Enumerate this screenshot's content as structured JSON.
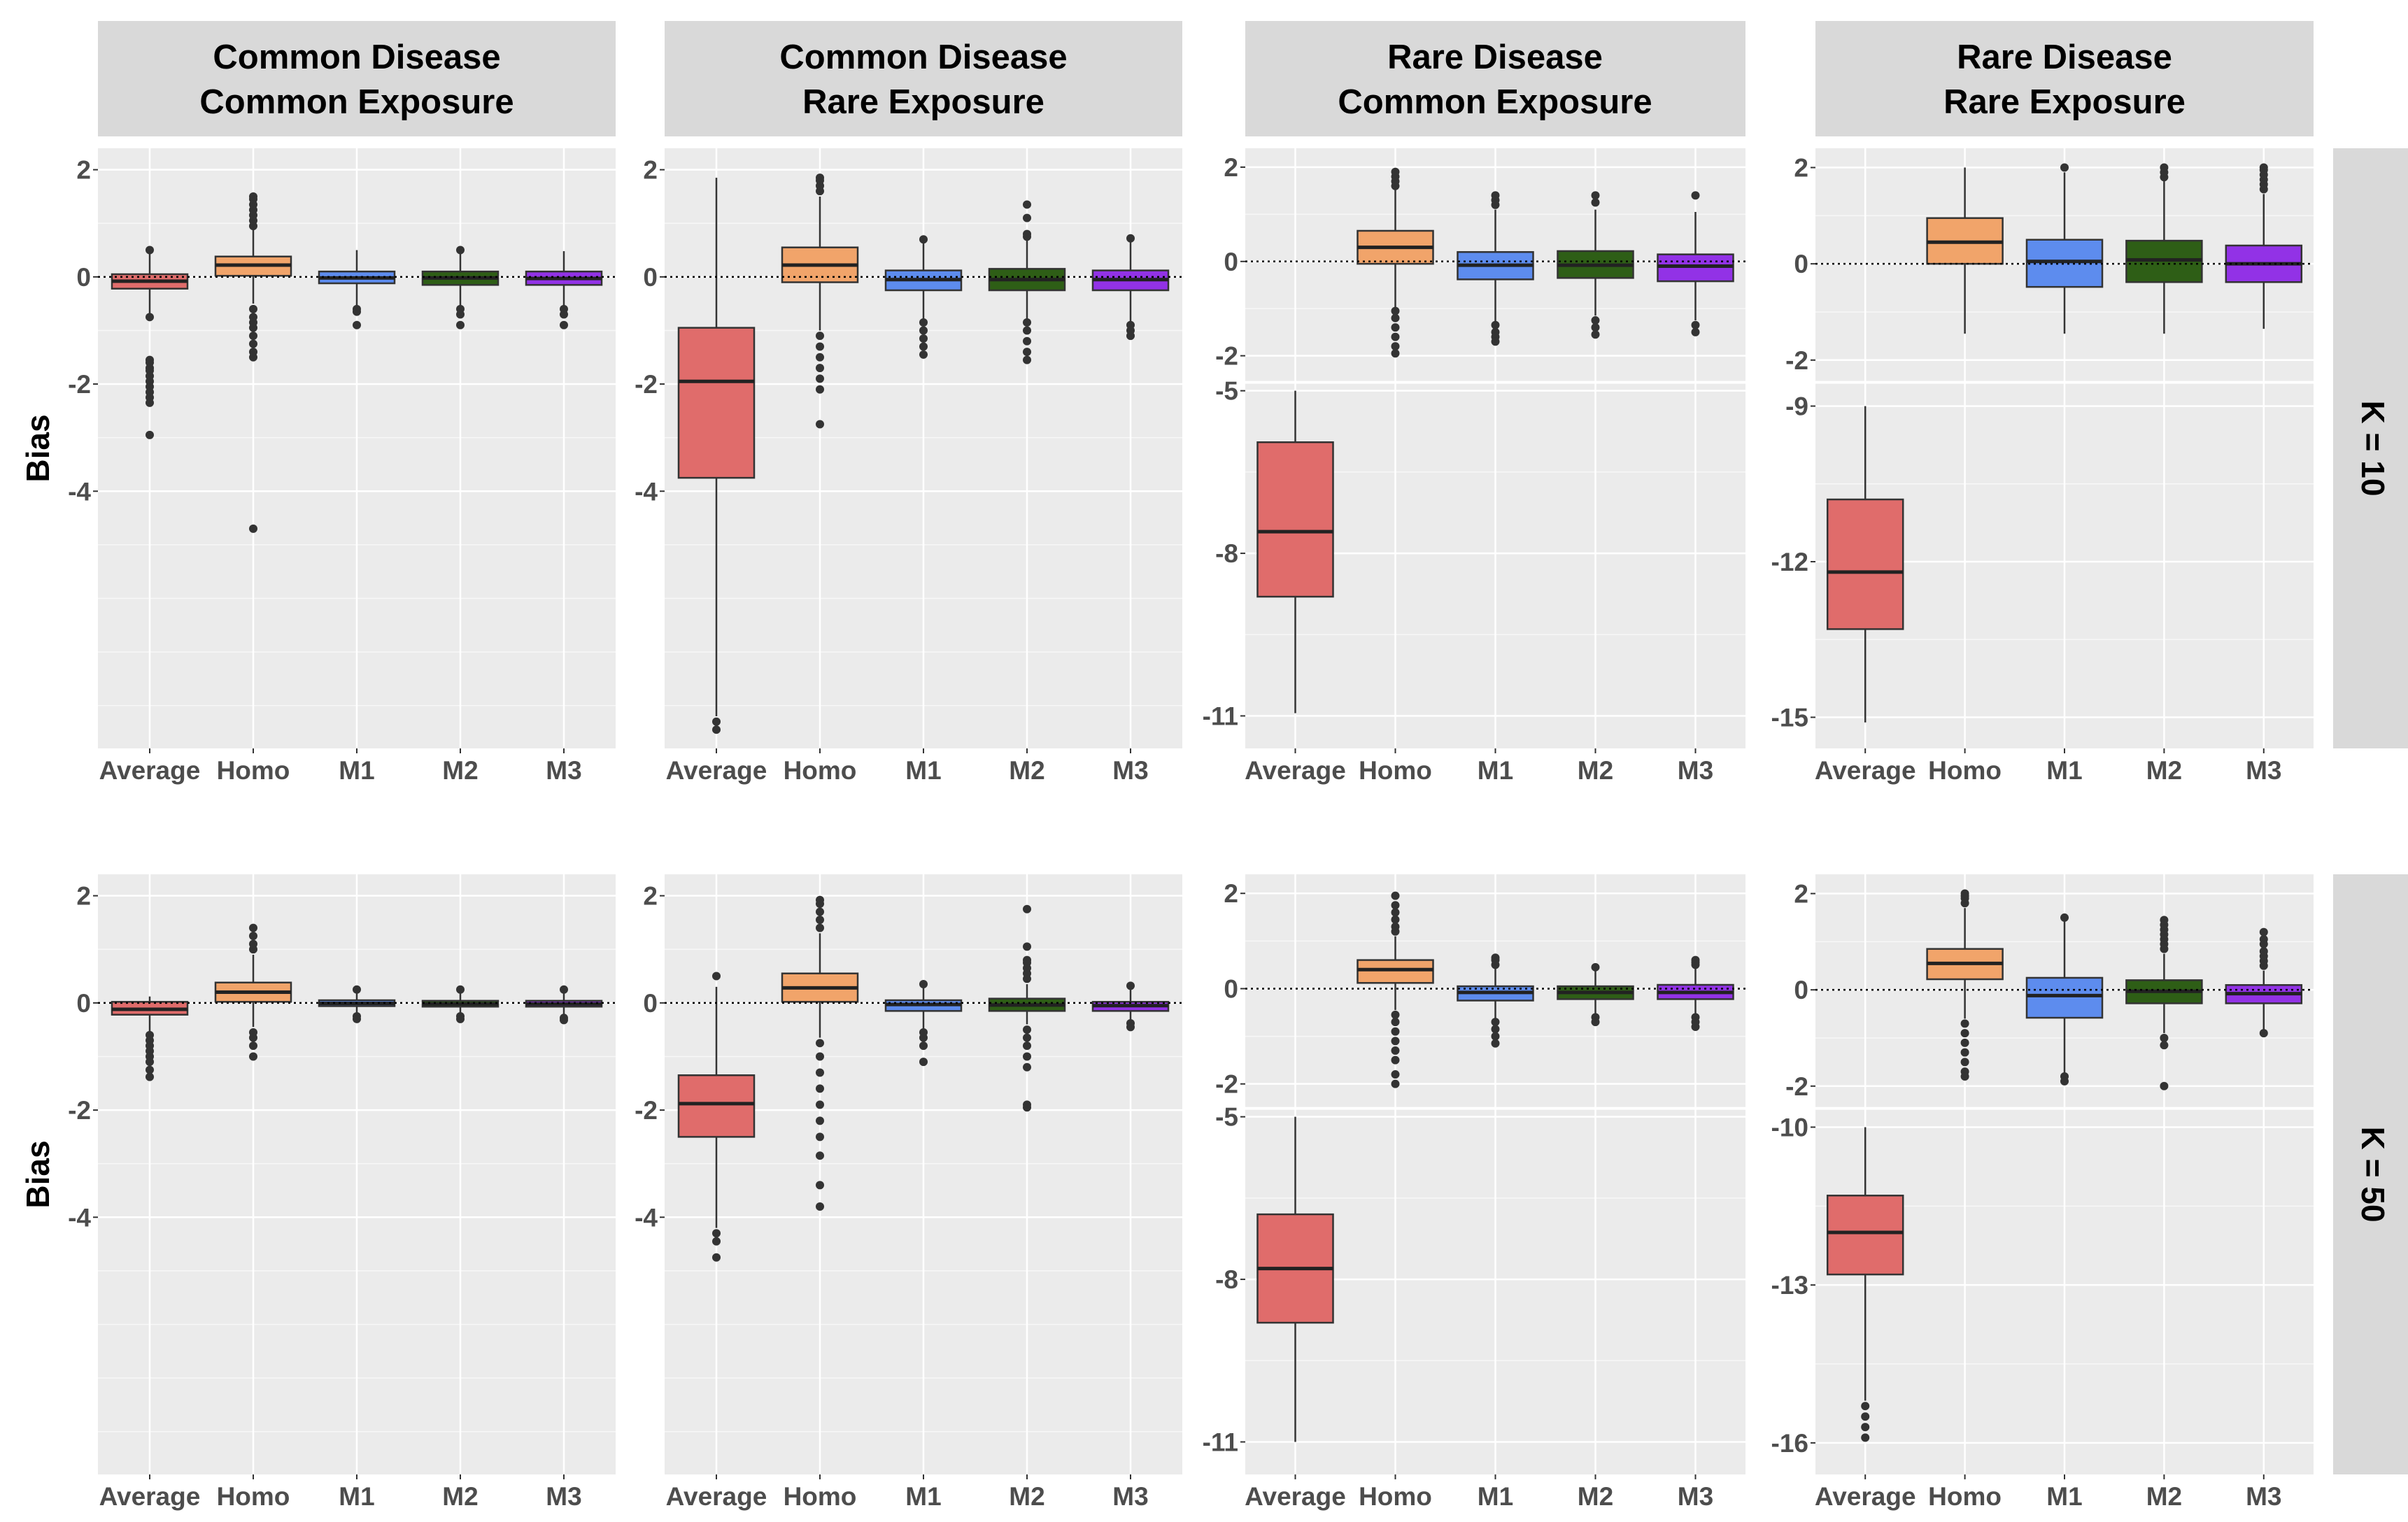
{
  "chart_data": {
    "type": "box",
    "title": "",
    "ylabel": "Bias",
    "groups": [
      "Average",
      "Homo",
      "M1",
      "M2",
      "M3"
    ],
    "colors": {
      "Average": "#e06c6b",
      "Homo": "#f1a46a",
      "M1": "#5d8cee",
      "M2": "#2e5e16",
      "M3": "#9232e6"
    },
    "columns": [
      {
        "line1": "Common Disease",
        "line2": "Common Exposure"
      },
      {
        "line1": "Common Disease",
        "line2": "Rare Exposure"
      },
      {
        "line1": "Rare Disease",
        "line2": "Common Exposure"
      },
      {
        "line1": "Rare Disease",
        "line2": "Rare Exposure"
      }
    ],
    "rows": [
      "K = 10",
      "K = 50"
    ],
    "panels": [
      {
        "row": 0,
        "col": 0,
        "axis": {
          "ticks": [
            -4,
            -2,
            0,
            2
          ],
          "labels": [
            "-4",
            "-2",
            "0",
            "2"
          ]
        },
        "boxes": [
          {
            "g": "Average",
            "lo": -0.7,
            "q1": -0.22,
            "med": -0.08,
            "q3": 0.05,
            "hi": 0.5,
            "out": [
              -0.75,
              -1.55,
              -1.6,
              -1.7,
              -1.75,
              -1.85,
              -1.95,
              -2.05,
              -2.15,
              -2.25,
              -2.35,
              -2.95,
              0.5
            ]
          },
          {
            "g": "Homo",
            "lo": -0.5,
            "q1": 0.02,
            "med": 0.22,
            "q3": 0.38,
            "hi": 0.9,
            "out": [
              0.95,
              1.05,
              1.15,
              1.25,
              1.35,
              1.45,
              1.5,
              -0.6,
              -0.75,
              -0.85,
              -0.95,
              -1.1,
              -1.25,
              -1.4,
              -1.5,
              -4.7
            ]
          },
          {
            "g": "M1",
            "lo": -0.55,
            "q1": -0.12,
            "med": -0.02,
            "q3": 0.1,
            "hi": 0.5,
            "out": [
              -0.6,
              -0.65,
              -0.9
            ]
          },
          {
            "g": "M2",
            "lo": -0.55,
            "q1": -0.15,
            "med": -0.02,
            "q3": 0.1,
            "hi": 0.45,
            "out": [
              0.5,
              -0.6,
              -0.7,
              -0.9
            ]
          },
          {
            "g": "M3",
            "lo": -0.55,
            "q1": -0.15,
            "med": -0.03,
            "q3": 0.1,
            "hi": 0.48,
            "out": [
              -0.6,
              -0.7,
              -0.9
            ]
          }
        ]
      },
      {
        "row": 0,
        "col": 1,
        "axis": {
          "ticks": [
            -4,
            -2,
            0,
            2
          ],
          "labels": [
            "-4",
            "-2",
            "0",
            "2"
          ]
        },
        "boxes": [
          {
            "g": "Average",
            "lo": -8.2,
            "q1": -3.75,
            "med": -1.95,
            "q3": -0.95,
            "hi": 1.85,
            "out": [
              -8.3,
              -8.45
            ]
          },
          {
            "g": "Homo",
            "lo": -1.0,
            "q1": -0.1,
            "med": 0.22,
            "q3": 0.55,
            "hi": 1.5,
            "out": [
              1.6,
              1.7,
              1.8,
              1.85,
              -1.1,
              -1.3,
              -1.5,
              -1.7,
              -1.9,
              -2.1,
              -2.75
            ]
          },
          {
            "g": "M1",
            "lo": -0.8,
            "q1": -0.25,
            "med": -0.05,
            "q3": 0.12,
            "hi": 0.65,
            "out": [
              0.7,
              -0.85,
              -1.0,
              -1.15,
              -1.3,
              -1.45
            ]
          },
          {
            "g": "M2",
            "lo": -0.8,
            "q1": -0.25,
            "med": -0.05,
            "q3": 0.15,
            "hi": 0.7,
            "out": [
              0.75,
              0.8,
              1.1,
              1.35,
              -0.85,
              -1.0,
              -1.2,
              -1.4,
              -1.55
            ]
          },
          {
            "g": "M3",
            "lo": -0.85,
            "q1": -0.25,
            "med": -0.05,
            "q3": 0.12,
            "hi": 0.68,
            "out": [
              0.72,
              -0.9,
              -1.0,
              -1.1
            ]
          }
        ]
      },
      {
        "row": 0,
        "col": 2,
        "break": {
          "upper": {
            "min": -2.5,
            "max": 2.4,
            "ticks": [
              -2,
              0,
              2
            ],
            "labels": [
              "-2",
              "0",
              "2"
            ]
          },
          "lower": {
            "min": -11.6,
            "max": -4.9,
            "ticks": [
              -5,
              -8,
              -11
            ],
            "labels": [
              "-5",
              "-8",
              "-11"
            ]
          }
        },
        "boxes": [
          {
            "g": "Average",
            "lo": -10.95,
            "q1": -8.8,
            "med": -7.6,
            "q3": -5.95,
            "hi": -5.0,
            "out": []
          },
          {
            "g": "Homo",
            "lo": -1.0,
            "q1": -0.05,
            "med": 0.3,
            "q3": 0.65,
            "hi": 1.55,
            "out": [
              1.6,
              1.7,
              1.8,
              1.9,
              -1.05,
              -1.2,
              -1.4,
              -1.6,
              -1.8,
              -1.95
            ]
          },
          {
            "g": "M1",
            "lo": -1.3,
            "q1": -0.38,
            "med": -0.08,
            "q3": 0.2,
            "hi": 1.1,
            "out": [
              1.2,
              1.3,
              1.4,
              -1.35,
              -1.5,
              -1.6,
              -1.7
            ]
          },
          {
            "g": "M2",
            "lo": -1.15,
            "q1": -0.35,
            "med": -0.08,
            "q3": 0.22,
            "hi": 1.1,
            "out": [
              1.25,
              1.4,
              -1.25,
              -1.4,
              -1.55
            ]
          },
          {
            "g": "M3",
            "lo": -1.25,
            "q1": -0.42,
            "med": -0.1,
            "q3": 0.15,
            "hi": 1.05,
            "out": [
              1.4,
              -1.35,
              -1.5
            ]
          }
        ]
      },
      {
        "row": 0,
        "col": 3,
        "break": {
          "upper": {
            "min": -2.4,
            "max": 2.4,
            "ticks": [
              -2,
              0,
              2
            ],
            "labels": [
              "-2",
              "0",
              "2"
            ]
          },
          "lower": {
            "min": -15.6,
            "max": -8.6,
            "ticks": [
              -9,
              -12,
              -15
            ],
            "labels": [
              "-9",
              "-12",
              "-15"
            ]
          }
        },
        "boxes": [
          {
            "g": "Average",
            "lo": -15.1,
            "q1": -13.3,
            "med": -12.2,
            "q3": -10.8,
            "hi": -9.0,
            "out": []
          },
          {
            "g": "Homo",
            "lo": -1.45,
            "q1": 0.0,
            "med": 0.45,
            "q3": 0.95,
            "hi": 2.0,
            "out": []
          },
          {
            "g": "M1",
            "lo": -1.45,
            "q1": -0.48,
            "med": 0.05,
            "q3": 0.5,
            "hi": 1.9,
            "out": [
              2.0
            ]
          },
          {
            "g": "M2",
            "lo": -1.45,
            "q1": -0.38,
            "med": 0.08,
            "q3": 0.48,
            "hi": 1.75,
            "out": [
              1.8,
              1.9,
              2.0
            ]
          },
          {
            "g": "M3",
            "lo": -1.35,
            "q1": -0.38,
            "med": 0.0,
            "q3": 0.38,
            "hi": 1.45,
            "out": [
              1.55,
              1.65,
              1.75,
              1.85,
              1.95,
              2.0
            ]
          }
        ]
      },
      {
        "row": 1,
        "col": 0,
        "axis": {
          "ticks": [
            -4,
            -2,
            0,
            2
          ],
          "labels": [
            "-4",
            "-2",
            "0",
            "2"
          ]
        },
        "boxes": [
          {
            "g": "Average",
            "lo": -0.55,
            "q1": -0.22,
            "med": -0.12,
            "q3": 0.02,
            "hi": 0.12,
            "out": [
              -0.6,
              -0.7,
              -0.8,
              -0.9,
              -1.0,
              -1.1,
              -1.25,
              -1.38
            ]
          },
          {
            "g": "Homo",
            "lo": -0.45,
            "q1": 0.02,
            "med": 0.2,
            "q3": 0.38,
            "hi": 0.9,
            "out": [
              1.0,
              1.1,
              1.25,
              1.4,
              -0.55,
              -0.65,
              -0.8,
              -1.0
            ]
          },
          {
            "g": "M1",
            "lo": -0.22,
            "q1": -0.06,
            "med": -0.01,
            "q3": 0.05,
            "hi": 0.2,
            "out": [
              0.25,
              -0.25,
              -0.3
            ]
          },
          {
            "g": "M2",
            "lo": -0.22,
            "q1": -0.07,
            "med": -0.02,
            "q3": 0.04,
            "hi": 0.2,
            "out": [
              0.25,
              -0.25,
              -0.3
            ]
          },
          {
            "g": "M3",
            "lo": -0.24,
            "q1": -0.07,
            "med": -0.02,
            "q3": 0.04,
            "hi": 0.2,
            "out": [
              0.25,
              -0.28,
              -0.32
            ]
          }
        ]
      },
      {
        "row": 1,
        "col": 1,
        "axis": {
          "ticks": [
            -4,
            -2,
            0,
            2
          ],
          "labels": [
            "-4",
            "-2",
            "0",
            "2"
          ]
        },
        "boxes": [
          {
            "g": "Average",
            "lo": -4.2,
            "q1": -2.5,
            "med": -1.88,
            "q3": -1.35,
            "hi": 0.3,
            "out": [
              0.5,
              -4.3,
              -4.45,
              -4.75
            ]
          },
          {
            "g": "Homo",
            "lo": -0.65,
            "q1": 0.02,
            "med": 0.28,
            "q3": 0.55,
            "hi": 1.3,
            "out": [
              1.4,
              1.55,
              1.7,
              1.85,
              1.92,
              -0.75,
              -1.0,
              -1.3,
              -1.6,
              -1.9,
              -2.2,
              -2.5,
              -2.85,
              -3.4,
              -3.8
            ]
          },
          {
            "g": "M1",
            "lo": -0.5,
            "q1": -0.15,
            "med": -0.03,
            "q3": 0.05,
            "hi": 0.3,
            "out": [
              0.35,
              -0.55,
              -0.65,
              -0.8,
              -1.1
            ]
          },
          {
            "g": "M2",
            "lo": -0.4,
            "q1": -0.15,
            "med": -0.04,
            "q3": 0.08,
            "hi": 0.35,
            "out": [
              0.45,
              0.55,
              0.65,
              0.75,
              0.8,
              1.05,
              1.75,
              -0.5,
              -0.65,
              -0.8,
              -1.0,
              -1.2,
              -1.9,
              -1.95
            ]
          },
          {
            "g": "M3",
            "lo": -0.32,
            "q1": -0.15,
            "med": -0.05,
            "q3": 0.02,
            "hi": 0.28,
            "out": [
              0.32,
              -0.38,
              -0.45
            ]
          }
        ]
      },
      {
        "row": 1,
        "col": 2,
        "break": {
          "upper": {
            "min": -2.45,
            "max": 2.4,
            "ticks": [
              -2,
              0,
              2
            ],
            "labels": [
              "-2",
              "0",
              "2"
            ]
          },
          "lower": {
            "min": -11.6,
            "max": -4.9,
            "ticks": [
              -5,
              -8,
              -11
            ],
            "labels": [
              "-5",
              "-8",
              "-11"
            ]
          }
        },
        "boxes": [
          {
            "g": "Average",
            "lo": -11.0,
            "q1": -8.8,
            "med": -7.8,
            "q3": -6.8,
            "hi": -5.0,
            "out": []
          },
          {
            "g": "Homo",
            "lo": -0.45,
            "q1": 0.12,
            "med": 0.4,
            "q3": 0.6,
            "hi": 1.1,
            "out": [
              1.2,
              1.3,
              1.45,
              1.6,
              1.75,
              1.95,
              -0.55,
              -0.7,
              -0.9,
              -1.1,
              -1.3,
              -1.5,
              -1.8,
              -2.0
            ]
          },
          {
            "g": "M1",
            "lo": -0.65,
            "q1": -0.25,
            "med": -0.08,
            "q3": 0.05,
            "hi": 0.45,
            "out": [
              0.5,
              0.6,
              0.65,
              -0.7,
              -0.85,
              -1.0,
              -1.15
            ]
          },
          {
            "g": "M2",
            "lo": -0.55,
            "q1": -0.22,
            "med": -0.08,
            "q3": 0.05,
            "hi": 0.4,
            "out": [
              0.45,
              -0.6,
              -0.7
            ]
          },
          {
            "g": "M3",
            "lo": -0.55,
            "q1": -0.22,
            "med": -0.08,
            "q3": 0.08,
            "hi": 0.45,
            "out": [
              0.5,
              0.55,
              0.6,
              -0.6,
              -0.7,
              -0.8
            ]
          }
        ]
      },
      {
        "row": 1,
        "col": 3,
        "break": {
          "upper": {
            "min": -2.4,
            "max": 2.4,
            "ticks": [
              -2,
              0,
              2
            ],
            "labels": [
              "-2",
              "0",
              "2"
            ]
          },
          "lower": {
            "min": -16.6,
            "max": -9.7,
            "ticks": [
              -10,
              -13,
              -16
            ],
            "labels": [
              "-10",
              "-13",
              "-16"
            ]
          }
        },
        "boxes": [
          {
            "g": "Average",
            "lo": -15.2,
            "q1": -12.8,
            "med": -12.0,
            "q3": -11.3,
            "hi": -10.0,
            "out": [
              -15.3,
              -15.5,
              -15.7,
              -15.9
            ]
          },
          {
            "g": "Homo",
            "lo": -0.6,
            "q1": 0.22,
            "med": 0.55,
            "q3": 0.85,
            "hi": 1.7,
            "out": [
              1.8,
              1.9,
              1.95,
              2.0,
              -0.7,
              -0.9,
              -1.1,
              -1.3,
              -1.5,
              -1.7,
              -1.8
            ]
          },
          {
            "g": "M1",
            "lo": -1.75,
            "q1": -0.58,
            "med": -0.12,
            "q3": 0.25,
            "hi": 1.45,
            "out": [
              1.5,
              -1.8,
              -1.9
            ]
          },
          {
            "g": "M2",
            "lo": -0.9,
            "q1": -0.28,
            "med": -0.03,
            "q3": 0.2,
            "hi": 0.75,
            "out": [
              0.85,
              0.95,
              1.05,
              1.15,
              1.25,
              1.35,
              1.45,
              -1.0,
              -1.15,
              -2.0
            ]
          },
          {
            "g": "M3",
            "lo": -0.85,
            "q1": -0.28,
            "med": -0.08,
            "q3": 0.1,
            "hi": 0.4,
            "out": [
              0.5,
              0.6,
              0.7,
              0.8,
              0.95,
              1.05,
              1.2,
              -0.9
            ]
          }
        ]
      }
    ]
  }
}
